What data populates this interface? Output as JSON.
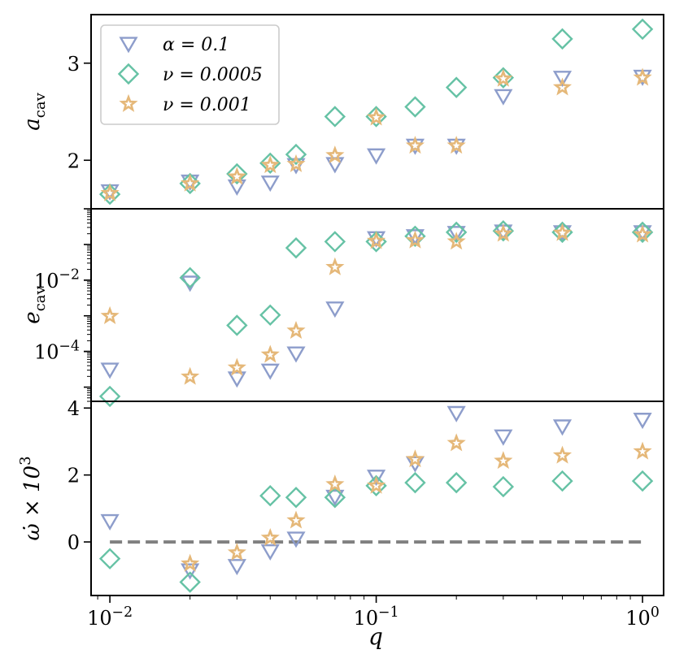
{
  "chart_data": {
    "type": "scatter",
    "xlabel": "q",
    "xscale": "log",
    "xlim": [
      0.0085,
      1.2
    ],
    "x_ticks": [
      {
        "value": 0.01,
        "base": "10",
        "exp": "−2"
      },
      {
        "value": 0.1,
        "base": "10",
        "exp": "−1"
      },
      {
        "value": 1,
        "base": "10",
        "exp": "0"
      }
    ],
    "legend": {
      "placement": "top-left",
      "entries": [
        {
          "name": "alpha",
          "label": "α = 0.1",
          "marker": "triangle-down",
          "color": "#8d9dcb"
        },
        {
          "name": "nu-0005",
          "label": "ν = 0.0005",
          "marker": "diamond",
          "color": "#66c2a5"
        },
        {
          "name": "nu-001",
          "label": "ν = 0.001",
          "marker": "star",
          "color": "#e5b879"
        }
      ]
    },
    "x": [
      0.01,
      0.02,
      0.03,
      0.04,
      0.05,
      0.07,
      0.1,
      0.14,
      0.2,
      0.3,
      0.5,
      1.0
    ],
    "panels": [
      {
        "id": "a-cav",
        "ylabel": "a",
        "ylabel_sub": "cav",
        "yscale": "linear",
        "ylim": [
          1.5,
          3.5
        ],
        "y_ticks": [
          {
            "value": 2,
            "label": "2"
          },
          {
            "value": 3,
            "label": "3"
          }
        ],
        "series": [
          {
            "name": "α = 0.1",
            "values": [
              1.68,
              1.78,
              1.73,
              1.77,
              1.95,
              1.96,
              2.05,
              2.15,
              2.15,
              2.66,
              2.85,
              2.86
            ]
          },
          {
            "name": "ν = 0.0005",
            "values": [
              1.65,
              1.76,
              1.86,
              1.97,
              2.06,
              2.45,
              2.45,
              2.55,
              2.75,
              2.85,
              3.25,
              3.35
            ]
          },
          {
            "name": "ν = 0.001",
            "values": [
              1.66,
              1.76,
              1.83,
              1.95,
              1.96,
              2.05,
              2.44,
              2.15,
              2.15,
              2.84,
              2.75,
              2.85
            ]
          }
        ]
      },
      {
        "id": "e-cav",
        "ylabel": "e",
        "ylabel_sub": "cav",
        "yscale": "log",
        "ylim": [
          4e-06,
          1.0
        ],
        "y_ticks": [
          {
            "value": 0.01,
            "base": "10",
            "exp": "−2"
          },
          {
            "value": 0.0001,
            "base": "10",
            "exp": "−4"
          }
        ],
        "series": [
          {
            "name": "α = 0.1",
            "values": [
              3.1e-05,
              0.0085,
              1.75e-05,
              2.9e-05,
              8.8e-05,
              0.0016,
              0.15,
              0.17,
              0.21,
              0.23,
              0.22,
              0.22
            ]
          },
          {
            "name": "ν = 0.0005",
            "values": [
              5.5e-06,
              0.0117,
              0.00054,
              0.00105,
              0.08,
              0.12,
              0.12,
              0.17,
              0.22,
              0.24,
              0.22,
              0.22
            ]
          },
          {
            "name": "ν = 0.001",
            "values": [
              0.00098,
              1.95e-05,
              3.5e-05,
              8.1e-05,
              0.00038,
              0.023,
              0.125,
              0.13,
              0.12,
              0.2,
              0.21,
              0.19
            ]
          }
        ]
      },
      {
        "id": "omega-dot",
        "ylabel": "ω̇ × 10",
        "ylabel_sup": "3",
        "yscale": "linear",
        "ylim": [
          -1.6,
          4.2
        ],
        "y_ticks": [
          {
            "value": 0,
            "label": "0"
          },
          {
            "value": 2,
            "label": "2"
          },
          {
            "value": 4,
            "label": "4"
          }
        ],
        "reference_line": {
          "y": 0,
          "x_from": 0.01,
          "x_to": 1.0,
          "style": "dashed",
          "color": "#808080"
        },
        "series": [
          {
            "name": "α = 0.1",
            "values": [
              0.62,
              -0.85,
              -0.72,
              -0.28,
              0.1,
              1.35,
              1.95,
              2.35,
              3.85,
              3.15,
              3.45,
              3.65
            ]
          },
          {
            "name": "ν = 0.0005",
            "values": [
              -0.5,
              -1.2,
              null,
              1.38,
              1.33,
              1.33,
              1.68,
              1.77,
              1.77,
              1.65,
              1.82,
              1.82
            ]
          },
          {
            "name": "ν = 0.001",
            "values": [
              null,
              -0.65,
              -0.32,
              0.12,
              0.64,
              1.72,
              1.68,
              2.47,
              2.95,
              2.42,
              2.58,
              2.7
            ]
          }
        ]
      }
    ]
  }
}
